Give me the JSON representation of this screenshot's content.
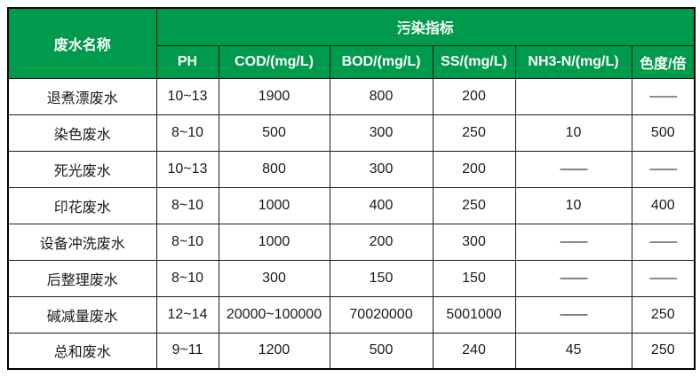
{
  "colors": {
    "header_green": "#009a4c",
    "header_text": "#ffffff",
    "grid_border": "#1a1a1a",
    "body_text": "#1a1a1a",
    "background": "#ffffff"
  },
  "table": {
    "corner_header": "废水名称",
    "group_header": "污染指标",
    "columns": [
      "PH",
      "COD/(mg/L)",
      "BOD/(mg/L)",
      "SS/(mg/L)",
      "NH3-N/(mg/L)",
      "色度/倍"
    ],
    "rows": [
      {
        "name": "退煮漂废水",
        "values": [
          "10~13",
          "1900",
          "800",
          "200",
          "",
          "——"
        ]
      },
      {
        "name": "染色废水",
        "values": [
          "8~10",
          "500",
          "300",
          "250",
          "10",
          "500"
        ]
      },
      {
        "name": "死光废水",
        "values": [
          "10~13",
          "800",
          "300",
          "200",
          "——",
          "——"
        ]
      },
      {
        "name": "印花废水",
        "values": [
          "8~10",
          "1000",
          "400",
          "250",
          "10",
          "400"
        ]
      },
      {
        "name": "设备冲洗废水",
        "values": [
          "8~10",
          "1000",
          "200",
          "300",
          "——",
          "——"
        ]
      },
      {
        "name": "后整理废水",
        "values": [
          "8~10",
          "300",
          "150",
          "150",
          "——",
          "——"
        ]
      },
      {
        "name": "碱减量废水",
        "values": [
          "12~14",
          "20000~100000",
          "70020000",
          "5001000",
          "——",
          "250"
        ]
      },
      {
        "name": "总和废水",
        "values": [
          "9~11",
          "1200",
          "500",
          "240",
          "45",
          "250"
        ]
      }
    ]
  }
}
